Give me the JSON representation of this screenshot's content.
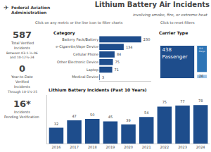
{
  "title": "Lithium Battery Air Incidents",
  "subtitle": "involving smoke, fire, or extreme heat",
  "annotations": [
    "Federal Aviation",
    "Administration",
    "✈",
    "Click on any metric or the line icon to filter charts",
    "Click to reset filters",
    "587",
    "Total Verified",
    "Incidents",
    "Between 03-1-½-06",
    "and 10-12½-24",
    "0",
    "Year-to-Date",
    "Verified",
    "Incidents",
    "Through 10-1½-25",
    "16*",
    "Incidents",
    "Pending Verification"
  ],
  "chart_data": [
    {
      "type": "bar",
      "title": "Category",
      "orientation": "horizontal",
      "categories": [
        "Battery Pack/Battery",
        "e-Cigarette/Vape Device",
        "Cellular Phone",
        "Other Electronic Device",
        "Laptop",
        "Medical Device"
      ],
      "values": [
        230,
        134,
        84,
        75,
        71,
        3
      ],
      "color": "#1e4d8c",
      "xlim": [
        0,
        285
      ],
      "tick_labels": "y",
      "grid": false,
      "data_labels": true
    },
    {
      "type": "treemap",
      "title": "Carrier Type",
      "categories": [
        "Passenger",
        "Cargo",
        null
      ],
      "values": [
        438,
        123,
        26
      ],
      "colors": [
        "#1e4d8c",
        "#2e75b6",
        "#9dc3e6"
      ],
      "data_labels": true
    },
    {
      "type": "bar",
      "title": "Lithium Battery Incidents (Past 10 Years)",
      "categories": [
        "2016",
        "2017",
        "2018",
        "2019",
        "2020",
        "2021",
        "2022",
        "2023",
        "2024"
      ],
      "values": [
        32,
        47,
        50,
        45,
        39,
        54,
        75,
        77,
        78
      ],
      "color": "#1e4d8c",
      "ylim": [
        0,
        98
      ],
      "tick_labels": "x",
      "grid": false,
      "data_labels": true
    }
  ]
}
